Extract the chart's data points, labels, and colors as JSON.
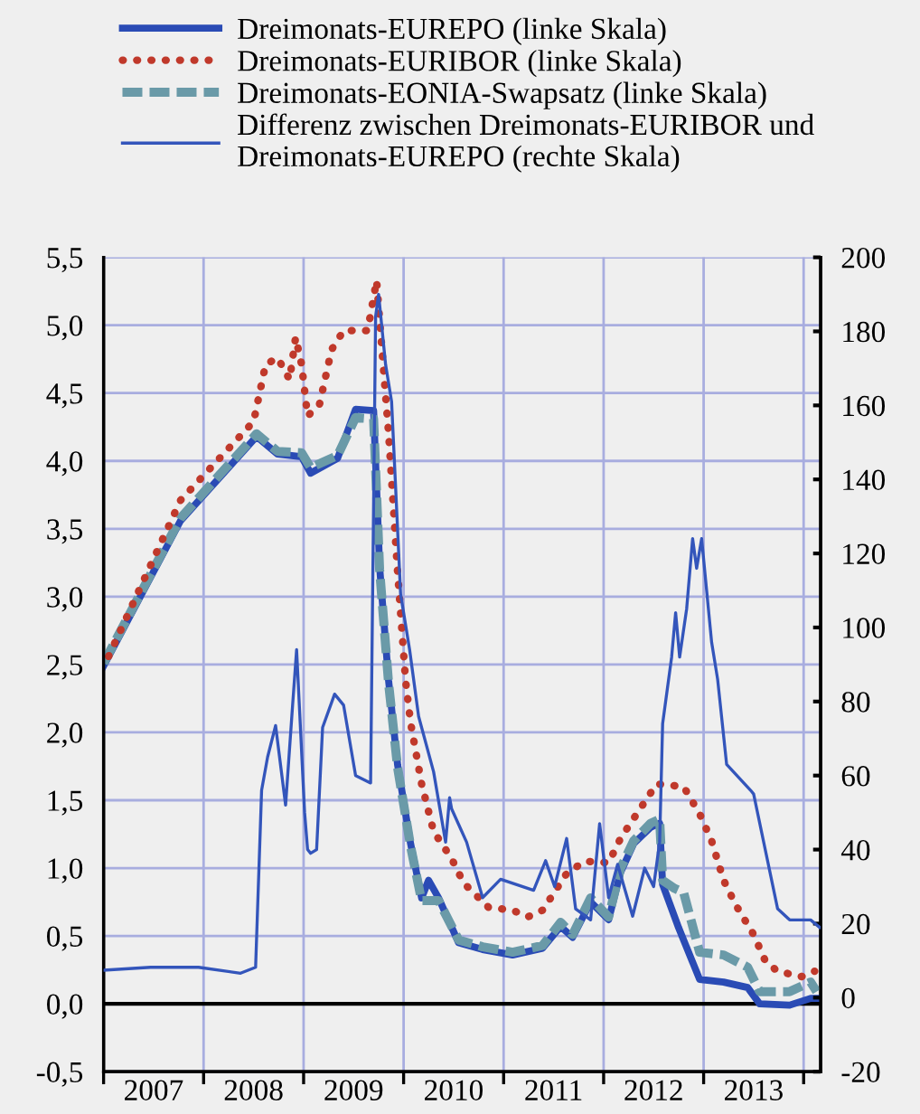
{
  "chart_data": {
    "type": "line",
    "series": [
      {
        "name": "Dreimonats-EUREPO (linke Skala)",
        "color": "#2a4bb5",
        "line_style": "solid",
        "axis": "y",
        "x": [
          2007.0,
          2007.77,
          2008.53,
          2008.74,
          2008.98,
          2009.07,
          2009.34,
          2009.52,
          2009.7,
          2009.76,
          2009.85,
          2009.94,
          2010.07,
          2010.18,
          2010.25,
          2010.35,
          2010.55,
          2010.79,
          2011.09,
          2011.39,
          2011.57,
          2011.69,
          2011.87,
          2012.05,
          2012.17,
          2012.3,
          2012.47,
          2012.56,
          2012.59,
          2012.75,
          2012.96,
          2013.2,
          2013.44,
          2013.56,
          2013.86,
          2014.07,
          2014.13
        ],
        "values": [
          2.49,
          3.56,
          4.18,
          4.05,
          4.03,
          3.91,
          4.02,
          4.38,
          4.37,
          3.22,
          2.38,
          1.76,
          1.18,
          0.78,
          0.91,
          0.78,
          0.45,
          0.4,
          0.36,
          0.41,
          0.57,
          0.49,
          0.75,
          0.62,
          0.97,
          1.18,
          1.3,
          1.33,
          0.88,
          0.56,
          0.18,
          0.16,
          0.12,
          0.0,
          -0.01,
          0.04,
          0.04
        ]
      },
      {
        "name": "Dreimonats-EURIBOR (linke Skala)",
        "color": "#c0392b",
        "line_style": "dotted",
        "axis": "y",
        "x": [
          2007.05,
          2007.77,
          2008.5,
          2008.62,
          2008.74,
          2008.86,
          2008.92,
          2008.98,
          2009.04,
          2009.16,
          2009.28,
          2009.4,
          2009.64,
          2009.73,
          2009.76,
          2009.85,
          2009.94,
          2010.02,
          2010.07,
          2010.18,
          2010.3,
          2010.48,
          2010.6,
          2010.85,
          2011.09,
          2011.24,
          2011.39,
          2011.63,
          2011.81,
          2012.05,
          2012.17,
          2012.35,
          2012.53,
          2012.8,
          2012.96,
          2013.08,
          2013.2,
          2013.32,
          2013.5,
          2013.62,
          2013.74,
          2013.98,
          2014.11
        ],
        "values": [
          2.56,
          3.71,
          4.29,
          4.71,
          4.76,
          4.6,
          4.91,
          4.71,
          4.33,
          4.42,
          4.82,
          4.96,
          4.96,
          5.33,
          5.04,
          4.2,
          3.18,
          2.38,
          2.07,
          1.62,
          1.27,
          1.07,
          0.89,
          0.71,
          0.69,
          0.64,
          0.69,
          0.96,
          1.05,
          1.04,
          1.22,
          1.42,
          1.62,
          1.6,
          1.4,
          1.2,
          0.91,
          0.73,
          0.51,
          0.31,
          0.24,
          0.2,
          0.24
        ]
      },
      {
        "name": "Dreimonats-EONIA-Swapsatz (linke Skala)",
        "color": "#6a9aa8",
        "line_style": "dashed",
        "axis": "y",
        "x": [
          2007.0,
          2007.77,
          2008.53,
          2008.74,
          2008.98,
          2009.07,
          2009.34,
          2009.52,
          2009.7,
          2009.76,
          2009.85,
          2009.94,
          2010.07,
          2010.18,
          2010.35,
          2010.55,
          2010.79,
          2011.09,
          2011.39,
          2011.57,
          2011.69,
          2011.87,
          2012.05,
          2012.17,
          2012.3,
          2012.47,
          2012.56,
          2012.59,
          2012.71,
          2012.8,
          2012.96,
          2013.2,
          2013.44,
          2013.56,
          2013.86,
          2014.07,
          2014.13
        ],
        "values": [
          2.51,
          3.58,
          4.2,
          4.07,
          4.06,
          3.95,
          4.04,
          4.32,
          4.31,
          3.2,
          2.36,
          1.74,
          1.16,
          0.76,
          0.76,
          0.47,
          0.42,
          0.38,
          0.43,
          0.6,
          0.51,
          0.78,
          0.64,
          1.0,
          1.2,
          1.33,
          1.36,
          0.91,
          0.85,
          0.82,
          0.38,
          0.36,
          0.27,
          0.09,
          0.09,
          0.16,
          0.09
        ]
      },
      {
        "name": "Differenz zwischen Dreimonats-EURIBOR und\nDreimonats-EUREPO (rechte Skala)",
        "color": "#3355bb",
        "line_style": "solid",
        "axis": "y2",
        "x": [
          2007.0,
          2007.47,
          2007.95,
          2008.37,
          2008.52,
          2008.58,
          2008.64,
          2008.72,
          2008.82,
          2008.89,
          2008.93,
          2009.01,
          2009.04,
          2009.07,
          2009.13,
          2009.19,
          2009.31,
          2009.4,
          2009.52,
          2009.67,
          2009.72,
          2009.75,
          2009.82,
          2009.88,
          2009.97,
          2010.06,
          2010.15,
          2010.3,
          2010.42,
          2010.46,
          2010.48,
          2010.63,
          2010.79,
          2010.97,
          2011.3,
          2011.42,
          2011.51,
          2011.63,
          2011.72,
          2011.87,
          2011.96,
          2012.05,
          2012.14,
          2012.29,
          2012.41,
          2012.5,
          2012.56,
          2012.59,
          2012.68,
          2012.72,
          2012.76,
          2012.83,
          2012.89,
          2012.93,
          2012.98,
          2013.08,
          2013.14,
          2013.23,
          2013.47,
          2013.5,
          2013.74,
          2013.86,
          2014.07,
          2014.16
        ],
        "values": [
          7.4,
          8.2,
          8.2,
          6.6,
          8.2,
          56,
          65,
          73.5,
          52,
          79,
          94,
          50,
          40,
          39,
          40,
          73,
          82,
          79,
          60,
          58,
          184,
          190,
          171,
          161,
          109,
          94,
          76,
          61,
          42,
          54,
          51,
          42,
          27,
          32,
          29,
          37,
          30,
          43,
          24,
          21,
          47,
          27,
          36,
          22,
          35,
          30,
          42,
          74,
          92,
          104,
          92,
          105,
          124,
          116,
          124,
          96,
          86,
          63,
          56,
          55,
          24,
          21,
          21,
          19
        ]
      }
    ],
    "xlim": [
      2007.0,
      2014.17
    ],
    "xticks": [
      {
        "value": 2007,
        "label": null
      },
      {
        "value": 2007.5,
        "label": "2007"
      },
      {
        "value": 2008,
        "label": null
      },
      {
        "value": 2008.5,
        "label": "2008"
      },
      {
        "value": 2009,
        "label": null
      },
      {
        "value": 2009.5,
        "label": "2009"
      },
      {
        "value": 2010,
        "label": null
      },
      {
        "value": 2010.5,
        "label": "2010"
      },
      {
        "value": 2011,
        "label": null
      },
      {
        "value": 2011.5,
        "label": "2011"
      },
      {
        "value": 2012,
        "label": null
      },
      {
        "value": 2012.5,
        "label": "2012"
      },
      {
        "value": 2013,
        "label": null
      },
      {
        "value": 2013.5,
        "label": "2013"
      },
      {
        "value": 2014,
        "label": null
      }
    ],
    "ylim": [
      -0.5,
      5.5
    ],
    "yticks": [
      {
        "value": -0.5,
        "label": "-0,5"
      },
      {
        "value": 0,
        "label": "0,0"
      },
      {
        "value": 0.5,
        "label": "0,5"
      },
      {
        "value": 1,
        "label": "1,0"
      },
      {
        "value": 1.5,
        "label": "1,5"
      },
      {
        "value": 2,
        "label": "2,0"
      },
      {
        "value": 2.5,
        "label": "2,5"
      },
      {
        "value": 3,
        "label": "3,0"
      },
      {
        "value": 3.5,
        "label": "3,5"
      },
      {
        "value": 4,
        "label": "4,0"
      },
      {
        "value": 4.5,
        "label": "4,5"
      },
      {
        "value": 5,
        "label": "5,0"
      },
      {
        "value": 5.5,
        "label": "5,5"
      }
    ],
    "y2lim": [
      -20,
      200
    ],
    "y2ticks": [
      -20,
      0,
      20,
      40,
      60,
      80,
      100,
      120,
      140,
      160,
      180,
      200
    ],
    "ref_lines": [
      {
        "axis": "y",
        "value": 0,
        "color": "#000000",
        "line_style": "solid"
      }
    ],
    "grid": true,
    "legend": "top"
  }
}
